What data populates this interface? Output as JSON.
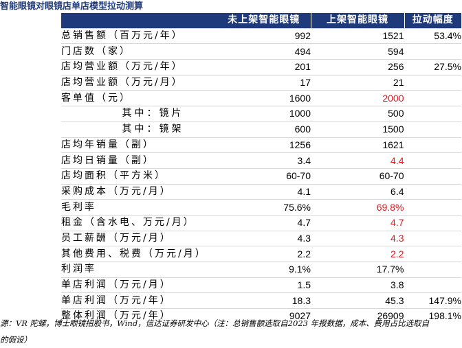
{
  "title": "智能眼镜对眼镜店单店模型拉动测算",
  "table": {
    "header": {
      "label": "",
      "col_off": "未上架智能眼镜",
      "col_on": "上架智能眼镜",
      "col_change": "拉动幅度"
    },
    "rows": [
      {
        "label": "总销售额（百万元/年）",
        "off": "992",
        "on": "1521",
        "change": "53.4%",
        "sub": false,
        "on_red": false
      },
      {
        "label": "门店数（家）",
        "off": "494",
        "on": "594",
        "change": "",
        "sub": false,
        "on_red": false
      },
      {
        "label": "店均营业额（万元/年）",
        "off": "201",
        "on": "256",
        "change": "27.5%",
        "sub": false,
        "on_red": false
      },
      {
        "label": "店均营业额（万元/月）",
        "off": "17",
        "on": "21",
        "change": "",
        "sub": false,
        "on_red": false
      },
      {
        "label": "客单值（元）",
        "off": "1600",
        "on": "2000",
        "change": "",
        "sub": false,
        "on_red": true
      },
      {
        "label": "其中：镜片",
        "off": "1000",
        "on": "500",
        "change": "",
        "sub": true,
        "on_red": false
      },
      {
        "label": "其中：镜架",
        "off": "600",
        "on": "1500",
        "change": "",
        "sub": true,
        "on_red": false
      },
      {
        "label": "店均年销量（副）",
        "off": "1256",
        "on": "1621",
        "change": "",
        "sub": false,
        "on_red": false
      },
      {
        "label": "店均日销量（副）",
        "off": "3.4",
        "on": "4.4",
        "change": "",
        "sub": false,
        "on_red": true
      },
      {
        "label": "店均面积（平方米）",
        "off": "60-70",
        "on": "60-70",
        "change": "",
        "sub": false,
        "on_red": false
      },
      {
        "label": "采购成本（万元/月）",
        "off": "4.1",
        "on": "6.4",
        "change": "",
        "sub": false,
        "on_red": false
      },
      {
        "label": "毛利率",
        "off": "75.6%",
        "on": "69.8%",
        "change": "",
        "sub": false,
        "on_red": true
      },
      {
        "label": "租金（含水电、万元/月）",
        "off": "4.7",
        "on": "4.7",
        "change": "",
        "sub": false,
        "on_red": true
      },
      {
        "label": "员工薪酬（万元/月）",
        "off": "4.3",
        "on": "4.3",
        "change": "",
        "sub": false,
        "on_red": true
      },
      {
        "label": "其他费用、税费（万元/月）",
        "off": "2.2",
        "on": "2.2",
        "change": "",
        "sub": false,
        "on_red": true
      },
      {
        "label": "利润率",
        "off": "9.1%",
        "on": "17.7%",
        "change": "",
        "sub": false,
        "on_red": false
      },
      {
        "label": "单店利润（万元/月）",
        "off": "1.5",
        "on": "3.8",
        "change": "",
        "sub": false,
        "on_red": false
      },
      {
        "label": "单店利润（万元/年）",
        "off": "18.3",
        "on": "45.3",
        "change": "147.9%",
        "sub": false,
        "on_red": false
      },
      {
        "label": "整体利润（万元/年）",
        "off": "9027",
        "on": "26909",
        "change": "198.1%",
        "sub": false,
        "on_red": false
      }
    ]
  },
  "source_line1": "源：VR 陀螺，博士眼镜招股书，Wind，信达证券研发中心（注：总销售额选取自2023 年报数据，成本、费用占比选取自",
  "source_line2": "的假设）",
  "colors": {
    "header_bg": "#1f3a7a",
    "title_color": "#1f3a7a",
    "highlight_red": "#e8151b"
  }
}
